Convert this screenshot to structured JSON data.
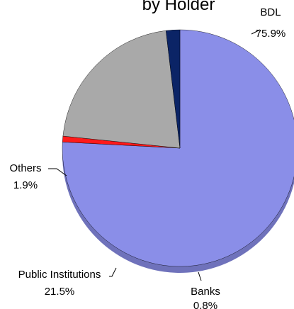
{
  "chart_data": {
    "type": "pie",
    "title": "by Holder",
    "slices": [
      {
        "label": "BDL",
        "value_label": "75.9%",
        "value": 75.9,
        "color": "#8a8ee8",
        "shade": "#6f72bb"
      },
      {
        "label": "Banks",
        "value_label": "0.8%",
        "value": 0.8,
        "color": "#ff1a1a",
        "shade": "#b51212"
      },
      {
        "label": "Public Institutions",
        "value_label": "21.5%",
        "value": 21.5,
        "color": "#a9a9a9",
        "shade": "#6d6d6d"
      },
      {
        "label": "Others",
        "value_label": "1.9%",
        "value": 1.9,
        "color": "#0b2466",
        "shade": "#061338"
      }
    ]
  }
}
